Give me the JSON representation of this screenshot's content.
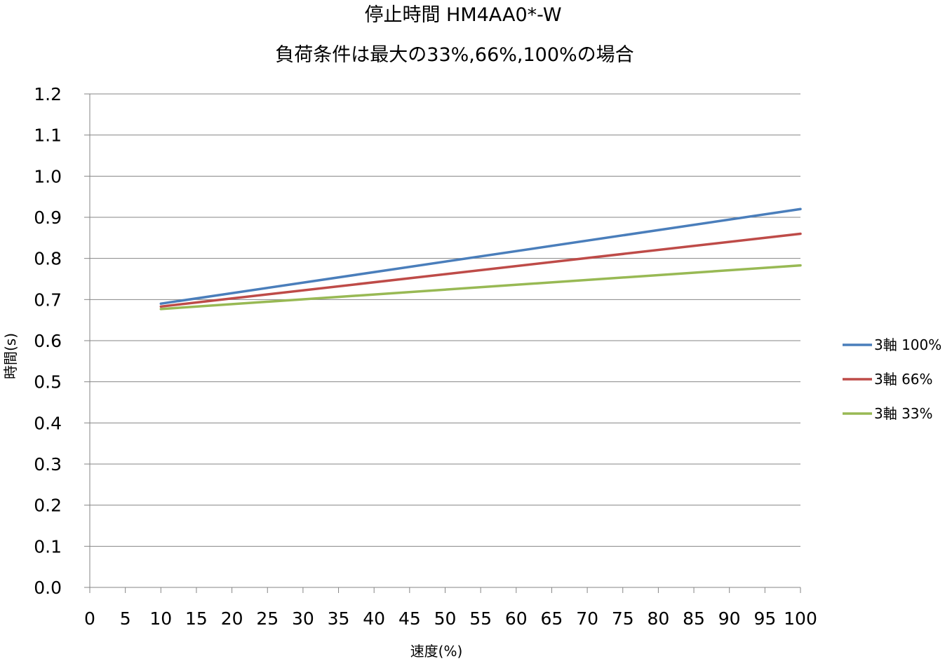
{
  "chart_data": {
    "type": "line",
    "title": "停止時間 HM4AA0*-W",
    "subtitle": "負荷条件は最大の33%,66%,100%の場合",
    "xlabel": "速度(%)",
    "ylabel": "時間(s)",
    "xlim": [
      0,
      100
    ],
    "ylim": [
      0,
      1.2
    ],
    "x_ticks": [
      "0",
      "5",
      "10",
      "15",
      "20",
      "25",
      "30",
      "35",
      "40",
      "45",
      "50",
      "55",
      "60",
      "65",
      "70",
      "75",
      "80",
      "85",
      "90",
      "95",
      "100"
    ],
    "y_ticks": [
      "0.0",
      "0.1",
      "0.2",
      "0.3",
      "0.4",
      "0.5",
      "0.6",
      "0.7",
      "0.8",
      "0.9",
      "1.0",
      "1.1",
      "1.2"
    ],
    "grid": "horizontal",
    "legend_position": "right",
    "x": [
      10,
      100
    ],
    "series": [
      {
        "name": "3軸 100%",
        "color": "#4a7ebb",
        "values": [
          0.69,
          0.92
        ]
      },
      {
        "name": "3軸 66%",
        "color": "#be4b48",
        "values": [
          0.683,
          0.86
        ]
      },
      {
        "name": "3軸 33%",
        "color": "#98b954",
        "values": [
          0.677,
          0.783
        ]
      }
    ]
  }
}
